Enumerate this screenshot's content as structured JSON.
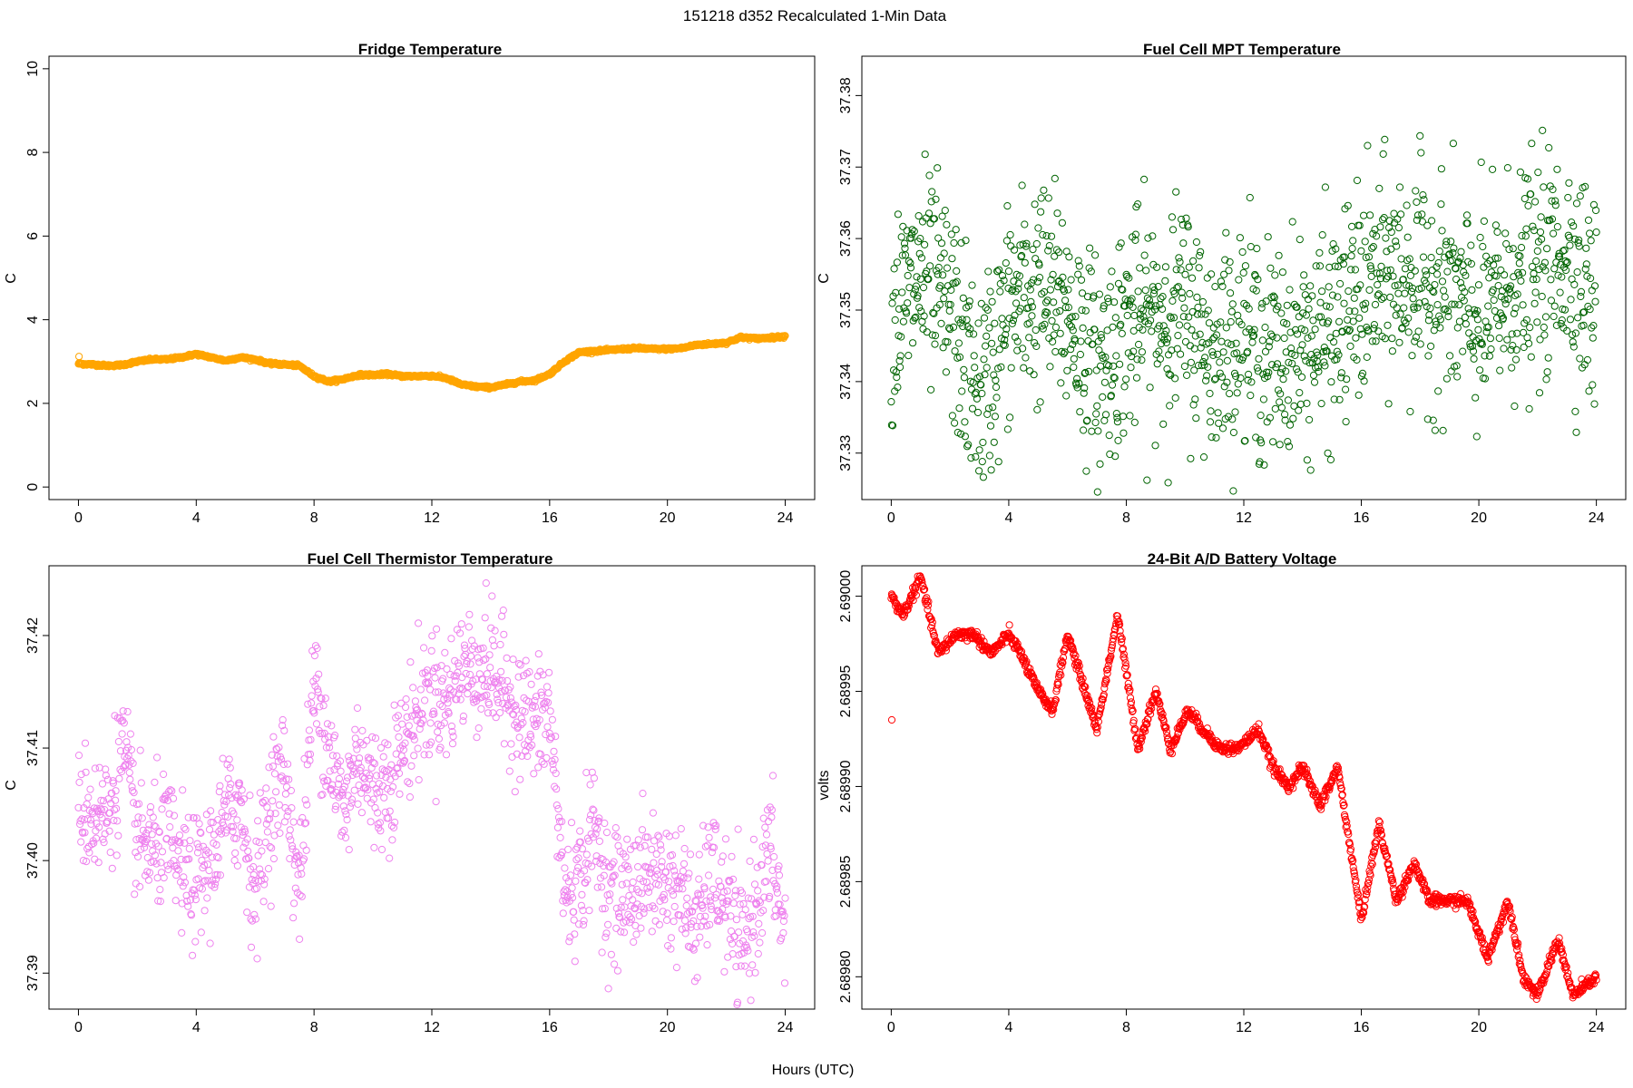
{
  "figure": {
    "title": "151218   d352   Recalculated 1-Min Data",
    "xlabel": "Hours (UTC)"
  },
  "chart_data": [
    {
      "type": "scatter",
      "title": "Fridge Temperature",
      "ylabel": "C",
      "color": "#FFA500",
      "xlim": [
        -1,
        25
      ],
      "ylim": [
        -0.3,
        10.3
      ],
      "xticks": [
        0,
        4,
        8,
        12,
        16,
        20,
        24
      ],
      "yticks": [
        0,
        2,
        4,
        6,
        8,
        10
      ],
      "ytick_labels": [
        "0",
        "2",
        "4",
        "6",
        "8",
        "10"
      ],
      "outliers": [
        [
          0.02,
          3.12
        ]
      ],
      "profile": [
        [
          0,
          2.95
        ],
        [
          0.5,
          2.93
        ],
        [
          1,
          2.9
        ],
        [
          1.5,
          2.92
        ],
        [
          2,
          3.0
        ],
        [
          2.5,
          3.05
        ],
        [
          3,
          3.05
        ],
        [
          3.5,
          3.1
        ],
        [
          4,
          3.18
        ],
        [
          4.5,
          3.1
        ],
        [
          5,
          3.02
        ],
        [
          5.5,
          3.1
        ],
        [
          6,
          3.05
        ],
        [
          6.5,
          2.95
        ],
        [
          7,
          2.93
        ],
        [
          7.5,
          2.9
        ],
        [
          8,
          2.65
        ],
        [
          8.5,
          2.52
        ],
        [
          9,
          2.58
        ],
        [
          9.5,
          2.68
        ],
        [
          10,
          2.68
        ],
        [
          10.5,
          2.7
        ],
        [
          11,
          2.65
        ],
        [
          11.5,
          2.65
        ],
        [
          12,
          2.66
        ],
        [
          12.5,
          2.6
        ],
        [
          13,
          2.45
        ],
        [
          13.5,
          2.4
        ],
        [
          14,
          2.38
        ],
        [
          14.5,
          2.45
        ],
        [
          15,
          2.52
        ],
        [
          15.5,
          2.55
        ],
        [
          16,
          2.7
        ],
        [
          16.5,
          3.0
        ],
        [
          17,
          3.22
        ],
        [
          17.5,
          3.25
        ],
        [
          18,
          3.27
        ],
        [
          18.5,
          3.3
        ],
        [
          19,
          3.32
        ],
        [
          19.5,
          3.3
        ],
        [
          20,
          3.3
        ],
        [
          20.5,
          3.32
        ],
        [
          21,
          3.4
        ],
        [
          21.5,
          3.42
        ],
        [
          22,
          3.45
        ],
        [
          22.5,
          3.58
        ],
        [
          23,
          3.55
        ],
        [
          23.5,
          3.57
        ],
        [
          24,
          3.6
        ]
      ],
      "noise": 0.015
    },
    {
      "type": "scatter",
      "title": "Fuel Cell MPT Temperature",
      "ylabel": "C",
      "color": "#006400",
      "xlim": [
        -1,
        25
      ],
      "ylim": [
        37.3235,
        37.3855
      ],
      "xticks": [
        0,
        4,
        8,
        12,
        16,
        20,
        24
      ],
      "yticks": [
        37.33,
        37.34,
        37.35,
        37.36,
        37.37,
        37.38
      ],
      "ytick_labels": [
        "37.33",
        "37.34",
        "37.35",
        "37.36",
        "37.37",
        "37.38"
      ],
      "outliers": [],
      "profile": [
        [
          0,
          37.348
        ],
        [
          1,
          37.355
        ],
        [
          2,
          37.35
        ],
        [
          3,
          37.337
        ],
        [
          4,
          37.35
        ],
        [
          5,
          37.353
        ],
        [
          6,
          37.35
        ],
        [
          7,
          37.341
        ],
        [
          8,
          37.348
        ],
        [
          9,
          37.349
        ],
        [
          10,
          37.35
        ],
        [
          11,
          37.344
        ],
        [
          12,
          37.347
        ],
        [
          13,
          37.343
        ],
        [
          14,
          37.345
        ],
        [
          15,
          37.347
        ],
        [
          16,
          37.352
        ],
        [
          17,
          37.355
        ],
        [
          18,
          37.354
        ],
        [
          19,
          37.352
        ],
        [
          20,
          37.348
        ],
        [
          21,
          37.353
        ],
        [
          22,
          37.355
        ],
        [
          23,
          37.358
        ],
        [
          24,
          37.35
        ]
      ],
      "noise": 0.0075
    },
    {
      "type": "scatter",
      "title": "Fuel Cell Thermistor Temperature",
      "ylabel": "C",
      "color": "#EE82EE",
      "xlim": [
        -1,
        25
      ],
      "ylim": [
        37.3868,
        37.4262
      ],
      "xticks": [
        0,
        4,
        8,
        12,
        16,
        20,
        24
      ],
      "yticks": [
        37.39,
        37.4,
        37.41,
        37.42
      ],
      "ytick_labels": [
        "37.39",
        "37.40",
        "37.41",
        "37.42"
      ],
      "outliers": [],
      "profile": [
        [
          0,
          37.405
        ],
        [
          0.5,
          37.404
        ],
        [
          1,
          37.404
        ],
        [
          1.5,
          37.41
        ],
        [
          2,
          37.402
        ],
        [
          2.5,
          37.401
        ],
        [
          3,
          37.402
        ],
        [
          3.5,
          37.399
        ],
        [
          4,
          37.398
        ],
        [
          4.5,
          37.4
        ],
        [
          5,
          37.404
        ],
        [
          5.5,
          37.405
        ],
        [
          6,
          37.397
        ],
        [
          6.5,
          37.405
        ],
        [
          7,
          37.408
        ],
        [
          7.5,
          37.397
        ],
        [
          8,
          37.416
        ],
        [
          8.5,
          37.41
        ],
        [
          9,
          37.404
        ],
        [
          9.5,
          37.41
        ],
        [
          10,
          37.406
        ],
        [
          10.5,
          37.407
        ],
        [
          11,
          37.41
        ],
        [
          11.5,
          37.413
        ],
        [
          12,
          37.415
        ],
        [
          12.5,
          37.414
        ],
        [
          13,
          37.417
        ],
        [
          13.5,
          37.417
        ],
        [
          14,
          37.417
        ],
        [
          14.5,
          37.415
        ],
        [
          15,
          37.413
        ],
        [
          15.5,
          37.412
        ],
        [
          16,
          37.413
        ],
        [
          16.5,
          37.397
        ],
        [
          17,
          37.398
        ],
        [
          17.5,
          37.403
        ],
        [
          18,
          37.397
        ],
        [
          18.5,
          37.397
        ],
        [
          19,
          37.398
        ],
        [
          19.5,
          37.399
        ],
        [
          20,
          37.398
        ],
        [
          20.5,
          37.397
        ],
        [
          21,
          37.394
        ],
        [
          21.5,
          37.399
        ],
        [
          22,
          37.396
        ],
        [
          22.5,
          37.392
        ],
        [
          23,
          37.396
        ],
        [
          23.5,
          37.401
        ],
        [
          24,
          37.393
        ]
      ],
      "noise": 0.0028
    },
    {
      "type": "scatter",
      "title": "24-Bit A/D Battery Voltage",
      "ylabel": "volts",
      "color": "#FF0000",
      "xlim": [
        -1,
        25
      ],
      "ylim": [
        2.689783,
        2.690016
      ],
      "xticks": [
        0,
        4,
        8,
        12,
        16,
        20,
        24
      ],
      "yticks": [
        2.6898,
        2.68985,
        2.6899,
        2.68995,
        2.69
      ],
      "ytick_labels": [
        "2.68980",
        "2.68985",
        "2.68990",
        "2.68995",
        "2.69000"
      ],
      "outliers": [
        [
          0.02,
          2.689935
        ]
      ],
      "profile": [
        [
          0,
          2.69
        ],
        [
          0.4,
          2.68999
        ],
        [
          1,
          2.69001
        ],
        [
          1.6,
          2.68997
        ],
        [
          2.2,
          2.68998
        ],
        [
          2.8,
          2.68998
        ],
        [
          3.4,
          2.68997
        ],
        [
          4,
          2.68998
        ],
        [
          4.4,
          2.68997
        ],
        [
          5,
          2.68995
        ],
        [
          5.5,
          2.68994
        ],
        [
          6,
          2.68998
        ],
        [
          6.4,
          2.68996
        ],
        [
          7,
          2.68993
        ],
        [
          7.7,
          2.68999
        ],
        [
          8.4,
          2.68992
        ],
        [
          9,
          2.68995
        ],
        [
          9.5,
          2.68992
        ],
        [
          10.1,
          2.68994
        ],
        [
          10.6,
          2.68993
        ],
        [
          11.2,
          2.68992
        ],
        [
          11.8,
          2.68992
        ],
        [
          12.5,
          2.68993
        ],
        [
          13,
          2.68991
        ],
        [
          13.5,
          2.6899
        ],
        [
          14,
          2.68991
        ],
        [
          14.6,
          2.68989
        ],
        [
          15.2,
          2.68991
        ],
        [
          16,
          2.68983
        ],
        [
          16.6,
          2.68988
        ],
        [
          17.2,
          2.68984
        ],
        [
          17.8,
          2.68986
        ],
        [
          18.3,
          2.68984
        ],
        [
          18.9,
          2.68984
        ],
        [
          19.6,
          2.68984
        ],
        [
          20.3,
          2.68981
        ],
        [
          21,
          2.68984
        ],
        [
          21.5,
          2.6898
        ],
        [
          22,
          2.68979
        ],
        [
          22.7,
          2.68982
        ],
        [
          23.2,
          2.68979
        ],
        [
          24,
          2.6898
        ]
      ],
      "noise": 1.5e-06
    }
  ]
}
